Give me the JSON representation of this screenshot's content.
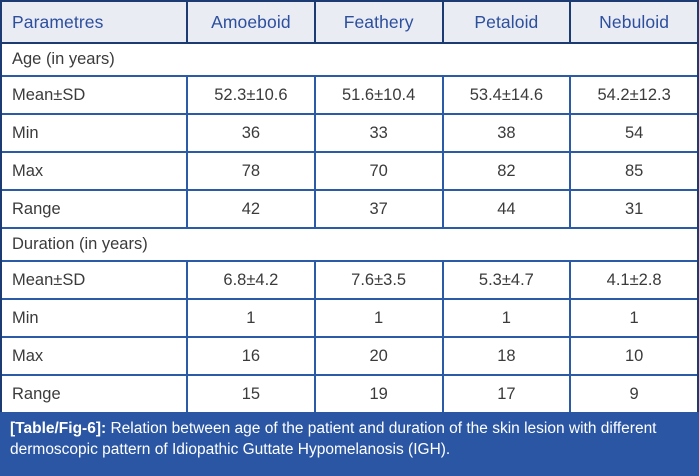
{
  "colors": {
    "header_bg": "#eaecf3",
    "header_text": "#2c4f9e",
    "border_dark": "#1c3b72",
    "row_line": "#2b5aa6",
    "caption_bg": "#2a56a4",
    "caption_text": "#ffffff",
    "body_text": "#3b3b3b"
  },
  "table": {
    "columns": [
      "Parametres",
      "Amoeboid",
      "Feathery",
      "Petaloid",
      "Nebuloid"
    ],
    "sections": [
      {
        "title": "Age (in years)",
        "rows": [
          {
            "label": "Mean±SD",
            "values": [
              "52.3±10.6",
              "51.6±10.4",
              "53.4±14.6",
              "54.2±12.3"
            ]
          },
          {
            "label": "Min",
            "values": [
              "36",
              "33",
              "38",
              "54"
            ]
          },
          {
            "label": "Max",
            "values": [
              "78",
              "70",
              "82",
              "85"
            ]
          },
          {
            "label": "Range",
            "values": [
              "42",
              "37",
              "44",
              "31"
            ]
          }
        ]
      },
      {
        "title": "Duration (in years)",
        "rows": [
          {
            "label": "Mean±SD",
            "values": [
              "6.8±4.2",
              "7.6±3.5",
              "5.3±4.7",
              "4.1±2.8"
            ]
          },
          {
            "label": "Min",
            "values": [
              "1",
              "1",
              "1",
              "1"
            ]
          },
          {
            "label": "Max",
            "values": [
              "16",
              "20",
              "18",
              "10"
            ]
          },
          {
            "label": "Range",
            "values": [
              "15",
              "19",
              "17",
              "9"
            ]
          }
        ]
      }
    ]
  },
  "caption": {
    "label": "[Table/Fig-6]:",
    "text": " Relation between age of the patient and duration of the skin lesion with different dermoscopic pattern of Idiopathic Guttate Hypomelanosis (IGH)."
  }
}
